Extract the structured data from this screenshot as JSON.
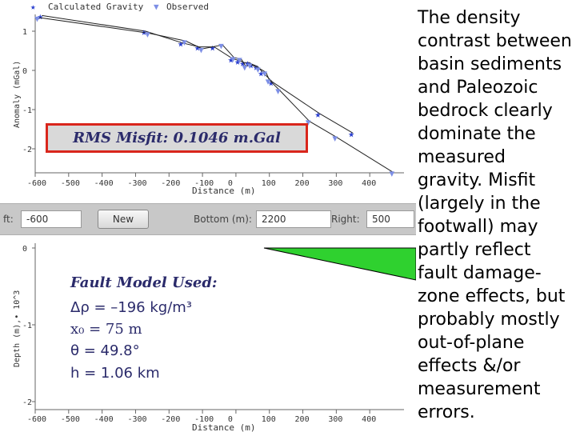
{
  "gravity_panel": {
    "legend": {
      "calculated": "Calculated Gravity",
      "observed": "Observed"
    },
    "ylabel": "Anomaly (mGal)",
    "xlabel": "Distance (m)",
    "x_ticks": [
      -600,
      -500,
      -400,
      -300,
      -200,
      -100,
      0,
      100,
      200,
      300,
      400
    ],
    "y_ticks": [
      1,
      0,
      -1,
      -2
    ],
    "misfit_label": "RMS Misfit: 0.1046 m.Gal"
  },
  "controls": {
    "left_label": "ft:",
    "left_value": "-600",
    "new_button": "New",
    "bottom_label": "Bottom (m):",
    "bottom_value": "2200",
    "right_label": "Right:",
    "right_value": "500"
  },
  "depth_panel": {
    "ylabel": "Depth (m),• 10^3",
    "xlabel": "Distance (m)",
    "x_ticks": [
      -600,
      -500,
      -400,
      -300,
      -200,
      -100,
      0,
      100,
      200,
      300,
      400
    ],
    "y_ticks": [
      0,
      -1,
      -2
    ],
    "fault_color": "#2fd12f",
    "fault_title": "Fault Model Used:",
    "params": {
      "density": "Δρ = –196 kg/m³",
      "x0": "x₀ = 75 m",
      "theta": "θ = 49.8°",
      "h": "h = 1.06 km"
    }
  },
  "side_text": "The density contrast between basin sediments and Paleozoic bedrock clearly dominate the measured gravity. Misfit (largely in the footwall) may partly reflect fault damage-zone effects, but probably mostly out-of-plane effects &/or measurement errors.",
  "colors": {
    "calculated": "#2a3fcf",
    "observed": "#7d8fe6",
    "misfit_border": "#d9261c",
    "label_text": "#2b2b6b"
  },
  "chart_data": {
    "type": "scatter",
    "xlabel": "Distance (m)",
    "ylabel": "Anomaly (mGal)",
    "xlim": [
      -600,
      450
    ],
    "ylim": [
      -2.5,
      1.5
    ],
    "series": [
      {
        "name": "Calculated Gravity",
        "x": [
          -580,
          -270,
          -160,
          -110,
          -65,
          -10,
          10,
          25,
          40,
          50,
          65,
          80,
          110,
          250,
          350
        ],
        "y": [
          1.4,
          1.0,
          0.7,
          0.6,
          0.6,
          0.3,
          0.25,
          0.2,
          0.2,
          0.15,
          0.1,
          -0.05,
          -0.3,
          -1.1,
          -1.6
        ]
      },
      {
        "name": "Observed",
        "x": [
          -590,
          -260,
          -150,
          -100,
          -40,
          -5,
          15,
          30,
          45,
          70,
          90,
          100,
          130,
          220,
          300,
          470
        ],
        "y": [
          1.35,
          0.95,
          0.75,
          0.55,
          0.65,
          0.32,
          0.3,
          0.1,
          0.15,
          0.05,
          -0.05,
          -0.25,
          -0.5,
          -1.3,
          -1.7,
          -2.6
        ]
      }
    ]
  }
}
